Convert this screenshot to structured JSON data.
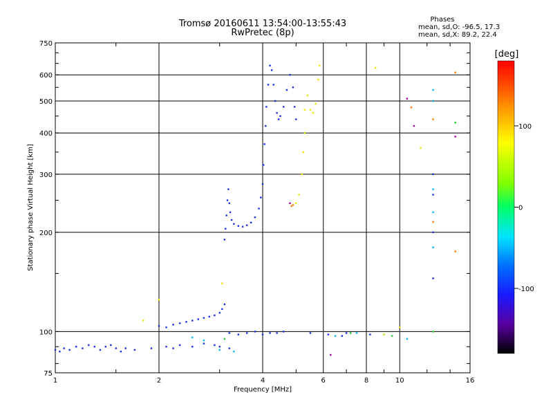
{
  "chart_data": {
    "type": "scatter",
    "title": "Tromsø 20160611 13:54:00-13:55:43",
    "subtitle": "RwPretec (8p)",
    "xlabel": "Frequency [MHz]",
    "ylabel": "Stationary phase Virtual Height [km]",
    "x_scale": "log",
    "y_scale": "log",
    "xlim": [
      1,
      16
    ],
    "ylim": [
      75,
      750
    ],
    "x_ticks": [
      "1",
      "2",
      "4",
      "6",
      "8",
      "10",
      "16"
    ],
    "y_ticks": [
      "75",
      "100",
      "200",
      "300",
      "400",
      "500",
      "600",
      "750"
    ],
    "grid": true,
    "phases": {
      "heading": "Phases",
      "o_line": "mean, sd,O: -96.5, 17.3",
      "x_line": "mean, sd,X:  89.2, 22.4"
    },
    "colorbar": {
      "label": "[deg]",
      "range": [
        -180,
        180
      ],
      "ticks": [
        "100",
        "0",
        "-100"
      ],
      "tick_values": [
        100,
        0,
        -100
      ]
    },
    "series": [
      {
        "color": "#1a2de0",
        "points": [
          [
            1.0,
            88
          ],
          [
            1.03,
            87
          ],
          [
            1.06,
            89
          ],
          [
            1.1,
            88
          ],
          [
            1.15,
            90
          ],
          [
            1.2,
            89
          ],
          [
            1.25,
            91
          ],
          [
            1.3,
            90
          ],
          [
            1.35,
            88
          ],
          [
            1.4,
            90
          ],
          [
            1.45,
            91
          ],
          [
            1.5,
            89
          ],
          [
            1.55,
            87
          ],
          [
            1.6,
            89
          ],
          [
            1.7,
            88
          ],
          [
            1.9,
            89
          ],
          [
            2.1,
            90
          ],
          [
            2.2,
            89
          ],
          [
            2.3,
            91
          ],
          [
            2.5,
            90
          ],
          [
            2.7,
            92
          ],
          [
            2.9,
            91
          ],
          [
            3.0,
            90
          ],
          [
            3.2,
            89
          ],
          [
            2.0,
            104
          ],
          [
            2.1,
            103
          ],
          [
            2.2,
            105
          ],
          [
            2.3,
            106
          ],
          [
            2.4,
            107
          ],
          [
            2.5,
            108
          ],
          [
            2.6,
            109
          ],
          [
            2.7,
            110
          ],
          [
            2.8,
            111
          ],
          [
            2.9,
            112
          ],
          [
            3.0,
            114
          ],
          [
            3.05,
            117
          ],
          [
            3.1,
            121
          ],
          [
            3.1,
            190
          ],
          [
            3.12,
            205
          ],
          [
            3.14,
            225
          ],
          [
            3.16,
            250
          ],
          [
            3.18,
            270
          ],
          [
            3.2,
            245
          ],
          [
            3.22,
            230
          ],
          [
            3.25,
            218
          ],
          [
            3.3,
            212
          ],
          [
            3.4,
            209
          ],
          [
            3.5,
            208
          ],
          [
            3.6,
            210
          ],
          [
            3.7,
            214
          ],
          [
            3.8,
            222
          ],
          [
            3.9,
            236
          ],
          [
            3.95,
            255
          ],
          [
            4.0,
            280
          ],
          [
            4.02,
            320
          ],
          [
            4.05,
            370
          ],
          [
            4.08,
            420
          ],
          [
            4.1,
            480
          ],
          [
            4.15,
            560
          ],
          [
            4.2,
            640
          ],
          [
            4.25,
            620
          ],
          [
            4.3,
            560
          ],
          [
            4.35,
            500
          ],
          [
            4.4,
            460
          ],
          [
            4.45,
            440
          ],
          [
            4.5,
            450
          ],
          [
            4.6,
            480
          ],
          [
            4.7,
            540
          ],
          [
            4.8,
            600
          ],
          [
            4.9,
            550
          ],
          [
            4.95,
            480
          ],
          [
            5.0,
            440
          ],
          [
            3.2,
            99
          ],
          [
            3.4,
            98
          ],
          [
            3.6,
            99
          ],
          [
            3.8,
            100
          ],
          [
            4.0,
            98
          ],
          [
            4.2,
            99
          ],
          [
            4.4,
            99
          ],
          [
            4.6,
            100
          ],
          [
            5.5,
            99
          ],
          [
            6.2,
            98
          ],
          [
            6.8,
            97
          ],
          [
            7.0,
            99
          ],
          [
            8.2,
            98
          ],
          [
            12.5,
            145
          ],
          [
            12.5,
            200
          ],
          [
            12.5,
            260
          ],
          [
            12.5,
            300
          ]
        ]
      },
      {
        "color": "#00b4ff",
        "points": [
          [
            2.5,
            96
          ],
          [
            2.7,
            94
          ],
          [
            3.0,
            88
          ],
          [
            3.3,
            87
          ],
          [
            6.5,
            97
          ],
          [
            7.5,
            99
          ],
          [
            9.0,
            98
          ],
          [
            10.5,
            95
          ],
          [
            12.5,
            180
          ],
          [
            12.5,
            230
          ],
          [
            12.5,
            270
          ],
          [
            12.5,
            500
          ],
          [
            12.5,
            540
          ]
        ]
      },
      {
        "color": "#28c828",
        "points": [
          [
            3.1,
            95
          ],
          [
            7.2,
            99
          ],
          [
            9.5,
            97
          ],
          [
            12.5,
            100
          ],
          [
            14.5,
            430
          ]
        ]
      },
      {
        "color": "#e6e600",
        "points": [
          [
            1.8,
            108
          ],
          [
            2.0,
            125
          ],
          [
            3.05,
            140
          ],
          [
            5.0,
            245
          ],
          [
            5.1,
            260
          ],
          [
            5.2,
            300
          ],
          [
            5.25,
            350
          ],
          [
            5.3,
            400
          ],
          [
            5.3,
            470
          ],
          [
            5.4,
            520
          ],
          [
            5.5,
            470
          ],
          [
            5.6,
            460
          ],
          [
            5.7,
            490
          ],
          [
            5.8,
            580
          ],
          [
            5.85,
            640
          ],
          [
            8.5,
            630
          ],
          [
            9.0,
            98
          ],
          [
            10.0,
            103
          ],
          [
            11.5,
            360
          ]
        ]
      },
      {
        "color": "#ff7a00",
        "points": [
          [
            4.85,
            240
          ],
          [
            4.9,
            242
          ],
          [
            10.8,
            478
          ],
          [
            12.5,
            215
          ],
          [
            12.5,
            440
          ],
          [
            14.5,
            175
          ],
          [
            14.5,
            610
          ]
        ]
      },
      {
        "color": "#a000a0",
        "points": [
          [
            4.8,
            245
          ],
          [
            6.3,
            85
          ],
          [
            10.5,
            508
          ],
          [
            11.0,
            420
          ],
          [
            14.5,
            390
          ]
        ]
      }
    ]
  }
}
